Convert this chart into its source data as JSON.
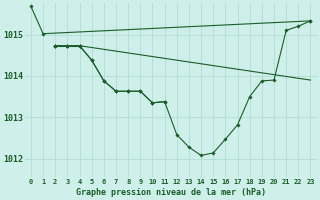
{
  "background_color": "#cff0ea",
  "grid_color": "#b0ddd5",
  "line_color": "#1a5e2a",
  "marker_color": "#1a5e2a",
  "title": "Graphe pression niveau de la mer (hPa)",
  "ylim": [
    1011.55,
    1015.75
  ],
  "xlim": [
    -0.5,
    23.5
  ],
  "ytick_values": [
    1012,
    1013,
    1014,
    1015
  ],
  "xtick_labels": [
    "0",
    "1",
    "2",
    "3",
    "4",
    "5",
    "6",
    "7",
    "8",
    "9",
    "10",
    "11",
    "12",
    "13",
    "14",
    "15",
    "16",
    "17",
    "18",
    "19",
    "20",
    "21",
    "22",
    "23"
  ],
  "series": {
    "line1": {
      "x": [
        0,
        1,
        23
      ],
      "y": [
        1015.68,
        1015.02,
        1015.33
      ],
      "markers": [
        0,
        1,
        23
      ]
    },
    "line2_straight": {
      "x": [
        2,
        3,
        4,
        23
      ],
      "y": [
        1014.73,
        1014.73,
        1014.73,
        1013.9
      ],
      "markers": [
        2,
        3,
        4
      ]
    },
    "line3": {
      "x": [
        2,
        3,
        4,
        5,
        6,
        7,
        8,
        9,
        10,
        11
      ],
      "y": [
        1014.73,
        1014.73,
        1014.73,
        1014.38,
        1013.88,
        1013.63,
        1013.63,
        1013.63,
        1013.35,
        1013.38
      ],
      "markers": [
        2,
        3,
        4,
        5,
        6,
        7,
        8,
        9,
        10,
        11
      ]
    },
    "line4": {
      "x": [
        2,
        3,
        4,
        5,
        6,
        7,
        8,
        9,
        10,
        11,
        12,
        13,
        14,
        15,
        16,
        17,
        18,
        19,
        20,
        21,
        22,
        23
      ],
      "y": [
        1014.73,
        1014.73,
        1014.73,
        1014.38,
        1013.88,
        1013.63,
        1013.63,
        1013.63,
        1013.35,
        1013.38,
        1012.58,
        1012.28,
        1012.08,
        1012.14,
        1012.47,
        1012.82,
        1013.5,
        1013.88,
        1013.9,
        1015.1,
        1015.2,
        1015.33
      ],
      "markers": [
        2,
        3,
        4,
        5,
        6,
        7,
        8,
        9,
        10,
        11,
        12,
        13,
        14,
        15,
        16,
        17,
        18,
        19,
        20,
        21,
        22,
        23
      ]
    }
  },
  "figsize": [
    3.2,
    2.0
  ],
  "dpi": 100
}
